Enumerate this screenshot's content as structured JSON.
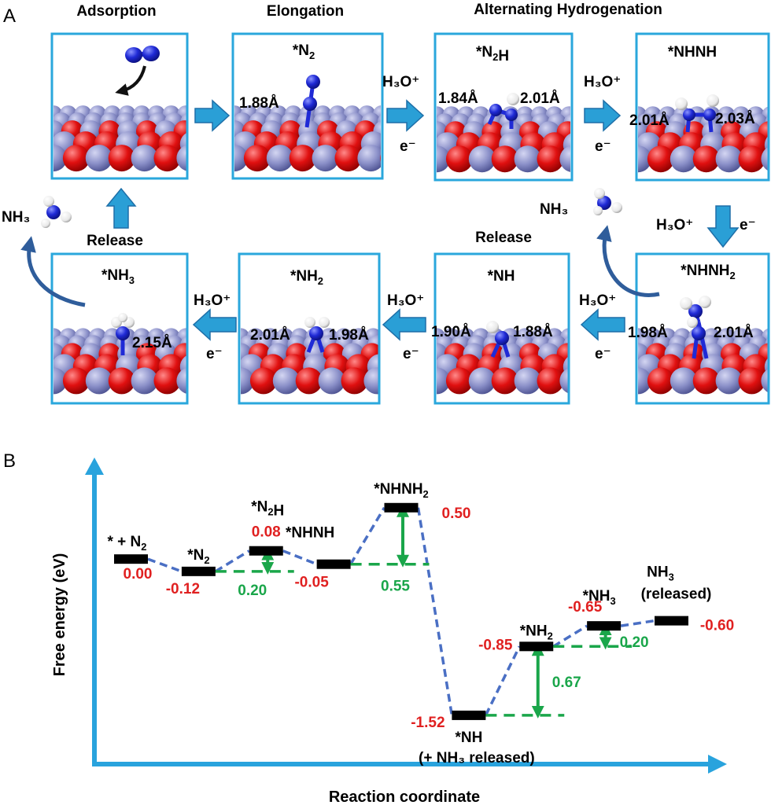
{
  "colors": {
    "box_border": "#2aa7dc",
    "arrow": "#2a9fd6",
    "arrow_dark": "#1e6fa8",
    "curve_arrow": "#2f5d9b",
    "surface_metal": "#8a8fc8",
    "surface_oxygen": "#e01010",
    "nitrogen": "#1f2ad6",
    "hydrogen": "#f2f2f2",
    "energy_red": "#e02020",
    "energy_green": "#1aa64a",
    "path_dash": "#4a6fc4",
    "axis": "#29a3dd"
  },
  "panel_a": {
    "letter": "A",
    "stage_titles": {
      "adsorption": "Adsorption",
      "elongation": "Elongation",
      "alternating": "Alternating Hydrogenation"
    },
    "release_labels": {
      "left": "Release",
      "right": "Release"
    },
    "molecule_labels": {
      "left": "NH₃",
      "right": "NH₃"
    },
    "reagents": {
      "proton": "H₃O⁺",
      "electron": "e⁻"
    },
    "boxes": {
      "adsorption": {
        "title": ""
      },
      "n2": {
        "title": "*N₂",
        "bonds": [
          "1.88Å"
        ]
      },
      "n2h": {
        "title": "*N₂H",
        "bonds": [
          "1.84Å",
          "2.01Å"
        ]
      },
      "nhnh": {
        "title": "*NHNH",
        "bonds": [
          "2.01Å",
          "2.03Å"
        ]
      },
      "nhnh2": {
        "title": "*NHNH₂",
        "bonds": [
          "1.98Å",
          "2.01Å"
        ]
      },
      "nh": {
        "title": "*NH",
        "bonds": [
          "1.90Å",
          "1.88Å"
        ]
      },
      "nh2": {
        "title": "*NH₂",
        "bonds": [
          "2.01Å",
          "1.98Å"
        ]
      },
      "nh3": {
        "title": "*NH₃",
        "bonds": [
          "2.15Å"
        ]
      }
    }
  },
  "panel_b": {
    "letter": "B",
    "ylabel": "Free energy (eV)",
    "xlabel": "Reaction coordinate"
  },
  "chart_data": {
    "type": "line",
    "title": "",
    "xlabel": "Reaction coordinate",
    "ylabel": "Free energy (eV)",
    "ylim": [
      -1.75,
      0.85
    ],
    "states": [
      {
        "label": "* + N₂",
        "energy": 0.0,
        "value_text": "0.00"
      },
      {
        "label": "*N₂",
        "energy": -0.12,
        "value_text": "-0.12"
      },
      {
        "label": "*N₂H",
        "energy": 0.08,
        "value_text": "0.08"
      },
      {
        "label": "*NHNH",
        "energy": -0.05,
        "value_text": "-0.05"
      },
      {
        "label": "*NHNH₂",
        "energy": 0.5,
        "value_text": "0.50"
      },
      {
        "label": "*NH",
        "sublabel": "(+ NH₃ released)",
        "energy": -1.52,
        "value_text": "-1.52"
      },
      {
        "label": "*NH₂",
        "energy": -0.85,
        "value_text": "-0.85"
      },
      {
        "label": "*NH₃",
        "energy": -0.65,
        "value_text": "-0.65"
      },
      {
        "label": "NH₃",
        "sublabel": "(released)",
        "energy": -0.6,
        "value_text": "-0.60"
      }
    ],
    "barriers": [
      {
        "from_state": 1,
        "to_state": 2,
        "value": 0.2,
        "value_text": "0.20"
      },
      {
        "from_state": 3,
        "to_state": 4,
        "value": 0.55,
        "value_text": "0.55"
      },
      {
        "from_state": 5,
        "to_state": 6,
        "value": 0.67,
        "value_text": "0.67"
      },
      {
        "from_state": 6,
        "to_state": 7,
        "value": 0.2,
        "value_text": "0.20"
      }
    ]
  }
}
